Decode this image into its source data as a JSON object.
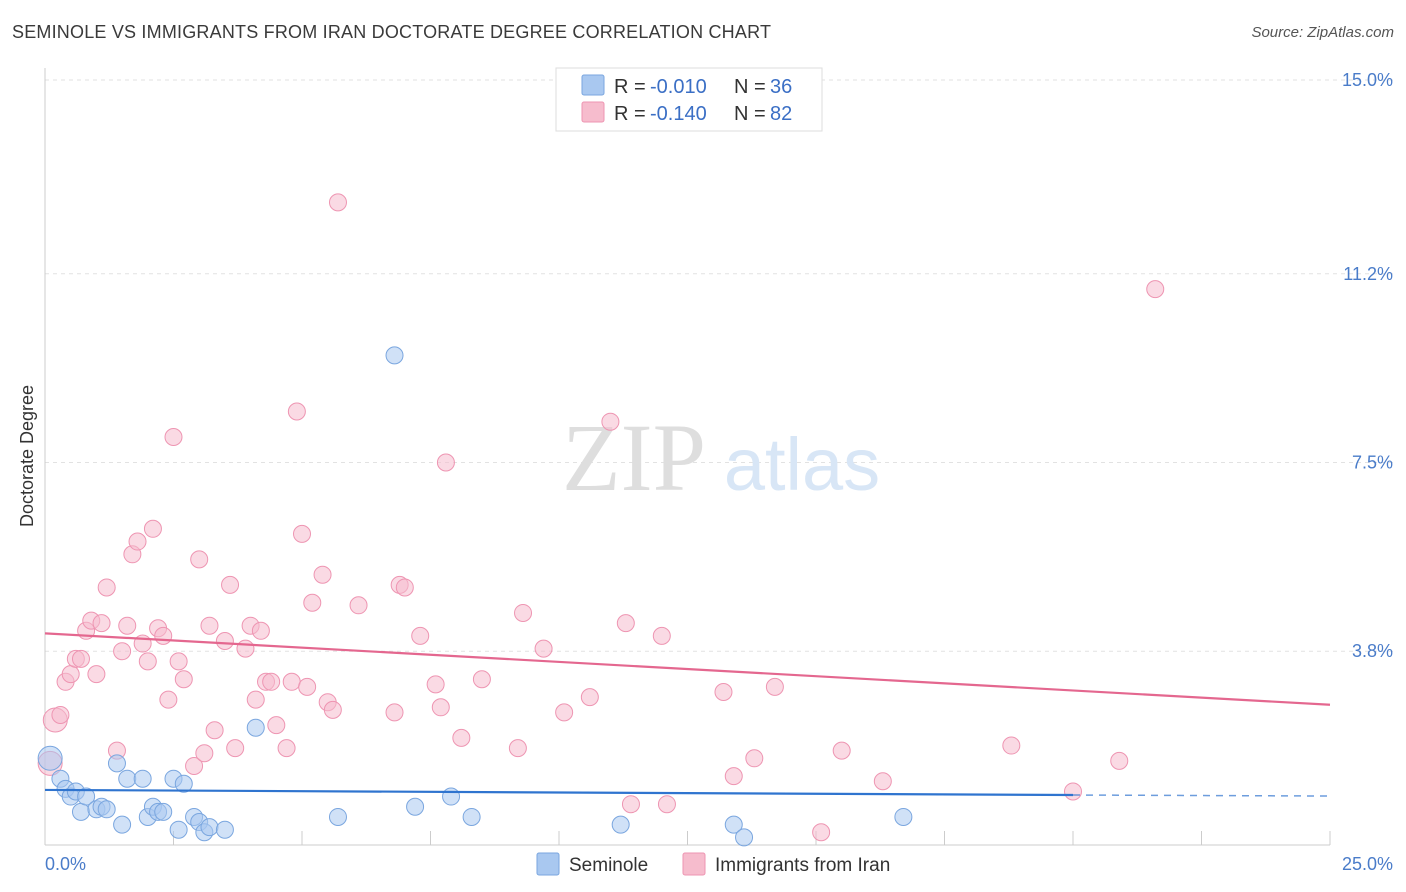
{
  "title": "SEMINOLE VS IMMIGRANTS FROM IRAN DOCTORATE DEGREE CORRELATION CHART",
  "source": "Source: ZipAtlas.com",
  "watermark": {
    "zip": "ZIP",
    "atlas": "atlas"
  },
  "legend": {
    "r_label": "R = ",
    "n_label": "N = ",
    "series": [
      {
        "name": "Seminole",
        "r": "-0.010",
        "n": "36",
        "color": "#a9c8f0",
        "stroke": "#7aa6df",
        "line": "#2f74cf"
      },
      {
        "name": "Immigrants from Iran",
        "r": "-0.140",
        "n": "82",
        "color": "#f6bccd",
        "stroke": "#ee95b2",
        "line": "#e4678f"
      }
    ]
  },
  "chart_data": {
    "type": "scatter",
    "title": "SEMINOLE VS IMMIGRANTS FROM IRAN DOCTORATE DEGREE CORRELATION CHART",
    "xlabel": "",
    "ylabel": "Doctorate Degree",
    "xlim": [
      0,
      25
    ],
    "ylim": [
      0,
      15
    ],
    "x_tick_labels": [
      "0.0%",
      "25.0%"
    ],
    "y_ticks": [
      3.8,
      7.5,
      11.2,
      15.0
    ],
    "y_tick_labels": [
      "3.8%",
      "7.5%",
      "11.2%",
      "15.0%"
    ],
    "grid": true,
    "series": [
      {
        "name": "Seminole",
        "trend": {
          "x0": 0,
          "y0": 1.08,
          "x1": 20,
          "y1": 0.98,
          "dash_to_x": 25,
          "dash_to_y": 0.96
        },
        "points": [
          [
            0.1,
            1.7
          ],
          [
            0.3,
            1.3
          ],
          [
            0.4,
            1.1
          ],
          [
            0.5,
            0.95
          ],
          [
            0.6,
            1.05
          ],
          [
            0.7,
            0.65
          ],
          [
            0.8,
            0.95
          ],
          [
            1.0,
            0.7
          ],
          [
            1.1,
            0.75
          ],
          [
            1.2,
            0.7
          ],
          [
            1.4,
            1.6
          ],
          [
            1.5,
            0.4
          ],
          [
            1.6,
            1.3
          ],
          [
            1.9,
            1.3
          ],
          [
            2.0,
            0.55
          ],
          [
            2.1,
            0.75
          ],
          [
            2.2,
            0.65
          ],
          [
            2.3,
            0.65
          ],
          [
            2.5,
            1.3
          ],
          [
            2.6,
            0.3
          ],
          [
            2.7,
            1.2
          ],
          [
            2.9,
            0.55
          ],
          [
            3.0,
            0.45
          ],
          [
            3.1,
            0.25
          ],
          [
            3.2,
            0.35
          ],
          [
            3.5,
            0.3
          ],
          [
            4.1,
            2.3
          ],
          [
            5.7,
            0.55
          ],
          [
            6.8,
            9.6
          ],
          [
            7.2,
            0.75
          ],
          [
            7.9,
            0.95
          ],
          [
            8.3,
            0.55
          ],
          [
            11.2,
            0.4
          ],
          [
            13.4,
            0.4
          ],
          [
            13.6,
            0.15
          ],
          [
            16.7,
            0.55
          ]
        ]
      },
      {
        "name": "Immigrants from Iran",
        "trend": {
          "x0": 0,
          "y0": 4.15,
          "x1": 25,
          "y1": 2.75
        },
        "points": [
          [
            0.1,
            1.6
          ],
          [
            0.2,
            2.45
          ],
          [
            0.3,
            2.55
          ],
          [
            0.4,
            3.2
          ],
          [
            0.5,
            3.35
          ],
          [
            0.6,
            3.65
          ],
          [
            0.7,
            3.65
          ],
          [
            0.8,
            4.2
          ],
          [
            0.9,
            4.4
          ],
          [
            1.0,
            3.35
          ],
          [
            1.1,
            4.35
          ],
          [
            1.2,
            5.05
          ],
          [
            1.4,
            1.85
          ],
          [
            1.5,
            3.8
          ],
          [
            1.6,
            4.3
          ],
          [
            1.7,
            5.7
          ],
          [
            1.8,
            5.95
          ],
          [
            1.9,
            3.95
          ],
          [
            2.0,
            3.6
          ],
          [
            2.1,
            6.2
          ],
          [
            2.2,
            4.25
          ],
          [
            2.3,
            4.1
          ],
          [
            2.4,
            2.85
          ],
          [
            2.5,
            8.0
          ],
          [
            2.6,
            3.6
          ],
          [
            2.7,
            3.25
          ],
          [
            2.9,
            1.55
          ],
          [
            3.0,
            5.6
          ],
          [
            3.1,
            1.8
          ],
          [
            3.2,
            4.3
          ],
          [
            3.3,
            2.25
          ],
          [
            3.5,
            4.0
          ],
          [
            3.6,
            5.1
          ],
          [
            3.7,
            1.9
          ],
          [
            3.9,
            3.85
          ],
          [
            4.0,
            4.3
          ],
          [
            4.1,
            2.85
          ],
          [
            4.2,
            4.2
          ],
          [
            4.3,
            3.2
          ],
          [
            4.4,
            3.2
          ],
          [
            4.5,
            2.35
          ],
          [
            4.7,
            1.9
          ],
          [
            4.8,
            3.2
          ],
          [
            4.9,
            8.5
          ],
          [
            5.0,
            6.1
          ],
          [
            5.1,
            3.1
          ],
          [
            5.2,
            4.75
          ],
          [
            5.4,
            5.3
          ],
          [
            5.5,
            2.8
          ],
          [
            5.6,
            2.65
          ],
          [
            5.7,
            12.6
          ],
          [
            6.1,
            4.7
          ],
          [
            6.8,
            2.6
          ],
          [
            6.9,
            5.1
          ],
          [
            7.0,
            5.05
          ],
          [
            7.3,
            4.1
          ],
          [
            7.6,
            3.15
          ],
          [
            7.7,
            2.7
          ],
          [
            7.8,
            7.5
          ],
          [
            8.1,
            2.1
          ],
          [
            8.5,
            3.25
          ],
          [
            9.2,
            1.9
          ],
          [
            9.3,
            4.55
          ],
          [
            9.7,
            3.85
          ],
          [
            10.1,
            2.6
          ],
          [
            10.6,
            2.9
          ],
          [
            11.0,
            8.3
          ],
          [
            11.3,
            4.35
          ],
          [
            11.4,
            0.8
          ],
          [
            12.0,
            4.1
          ],
          [
            12.1,
            0.8
          ],
          [
            13.2,
            3.0
          ],
          [
            13.4,
            1.35
          ],
          [
            13.8,
            1.7
          ],
          [
            14.2,
            3.1
          ],
          [
            15.1,
            0.25
          ],
          [
            15.5,
            1.85
          ],
          [
            16.3,
            1.25
          ],
          [
            18.8,
            1.95
          ],
          [
            20.0,
            1.05
          ],
          [
            20.9,
            1.65
          ],
          [
            21.6,
            10.9
          ]
        ]
      }
    ]
  }
}
